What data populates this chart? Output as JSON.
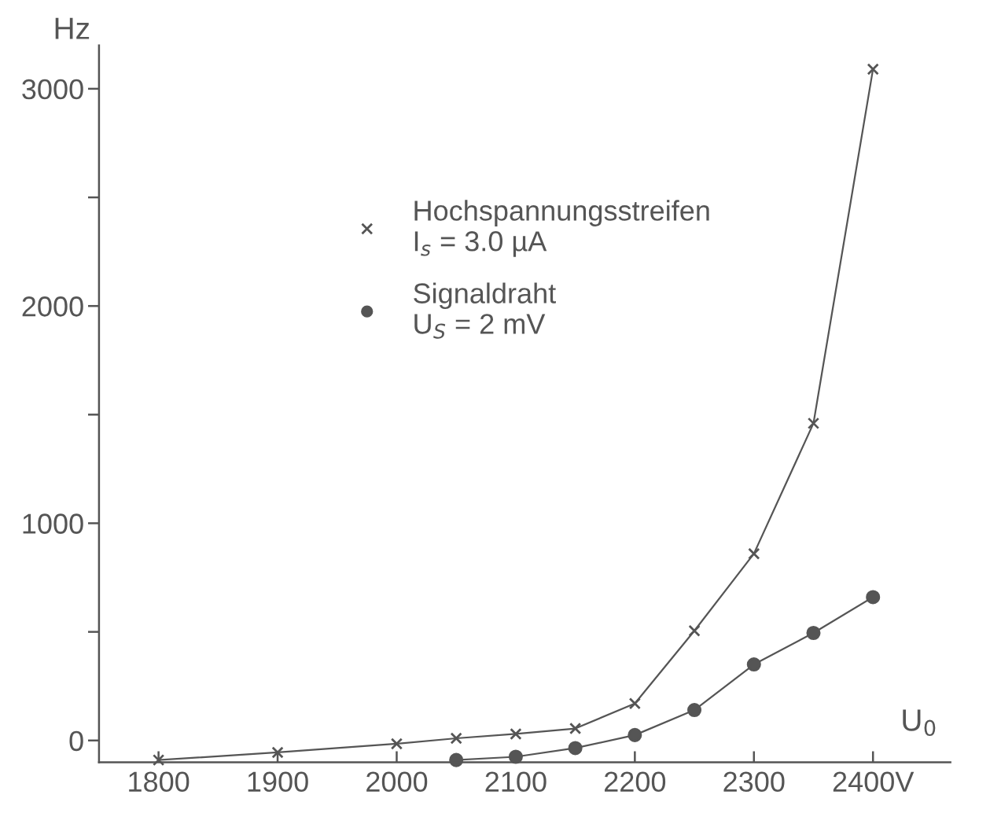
{
  "chart_data": {
    "type": "line",
    "xlabel": "U$_{0}$",
    "ylabel": "Hz",
    "xlim": [
      1750,
      2465
    ],
    "ylim": [
      -100,
      3200
    ],
    "xticks": [
      1800,
      1900,
      2000,
      2100,
      2200,
      2300,
      {
        "value": 2400,
        "label": "2400V"
      }
    ],
    "yticks": [
      0,
      {
        "value": 500,
        "label": null
      },
      1000,
      {
        "value": 1500,
        "label": null
      },
      2000,
      {
        "value": 2500,
        "label": null
      },
      3000
    ],
    "grid": false,
    "legend": "top",
    "line_style": "solid",
    "series": [
      {
        "name": "Hochspannungsstreifen\nI$_{s}$ = 3.0 µA",
        "color": "#555555",
        "marker": "cross",
        "x": [
          1800,
          1900,
          2000,
          2050,
          2100,
          2150,
          2200,
          2250,
          2300,
          2350,
          2400
        ],
        "values": [
          -90,
          -55,
          -15,
          10,
          30,
          55,
          170,
          505,
          860,
          1460,
          3090
        ]
      },
      {
        "name": "Signaldraht\nU$_{S}$ = 2 mV",
        "color": "#555555",
        "marker": "circle",
        "x": [
          2050,
          2100,
          2150,
          2200,
          2250,
          2300,
          2350,
          2400
        ],
        "values": [
          -90,
          -75,
          -35,
          25,
          140,
          350,
          495,
          660
        ]
      }
    ]
  }
}
